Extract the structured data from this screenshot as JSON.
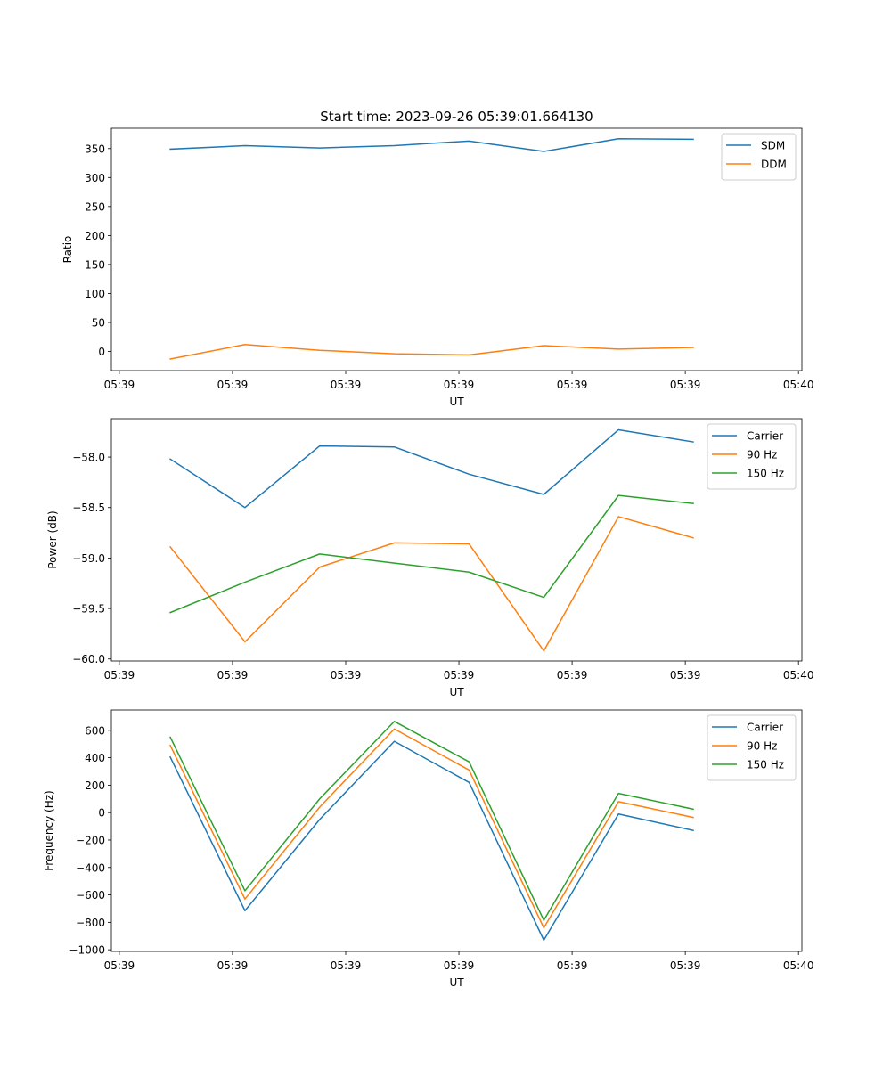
{
  "figure": {
    "title": "Start time: 2023-09-26 05:39:01.664130"
  },
  "chart_data": [
    {
      "type": "line",
      "xlabel": "UT",
      "ylabel": "Ratio",
      "x": [
        0.45,
        1.11,
        1.77,
        2.43,
        3.09,
        3.75,
        4.41,
        5.07
      ],
      "xlim": [
        -0.07,
        6.03
      ],
      "xticks": [
        0,
        1,
        2,
        3,
        4,
        5,
        6
      ],
      "xtick_labels": [
        "05:39",
        "05:39",
        "05:39",
        "05:39",
        "05:39",
        "05:39",
        "05:40"
      ],
      "ylim": [
        -33,
        385
      ],
      "yticks": [
        0,
        50,
        100,
        150,
        200,
        250,
        300,
        350
      ],
      "ytick_labels": [
        "0",
        "50",
        "100",
        "150",
        "200",
        "250",
        "300",
        "350"
      ],
      "legend": "top-right",
      "series": [
        {
          "name": "SDM",
          "color": "#1f77b4",
          "values": [
            349,
            355,
            351,
            355,
            363,
            345,
            367,
            366
          ]
        },
        {
          "name": "DDM",
          "color": "#ff7f0e",
          "values": [
            -13,
            12,
            2,
            -4,
            -6,
            10,
            4,
            7
          ]
        }
      ]
    },
    {
      "type": "line",
      "xlabel": "UT",
      "ylabel": "Power (dB)",
      "x": [
        0.45,
        1.11,
        1.77,
        2.43,
        3.09,
        3.75,
        4.41,
        5.07
      ],
      "xlim": [
        -0.07,
        6.03
      ],
      "xticks": [
        0,
        1,
        2,
        3,
        4,
        5,
        6
      ],
      "xtick_labels": [
        "05:39",
        "05:39",
        "05:39",
        "05:39",
        "05:39",
        "05:39",
        "05:40"
      ],
      "ylim": [
        -60.02,
        -57.62
      ],
      "yticks": [
        -60.0,
        -59.5,
        -59.0,
        -58.5,
        -58.0
      ],
      "ytick_labels": [
        "−60.0",
        "−59.5",
        "−59.0",
        "−58.5",
        "−58.0"
      ],
      "legend": "top-right",
      "series": [
        {
          "name": "Carrier",
          "color": "#1f77b4",
          "values": [
            -58.02,
            -58.5,
            -57.89,
            -57.9,
            -58.17,
            -58.37,
            -57.73,
            -57.85
          ]
        },
        {
          "name": "90 Hz",
          "color": "#ff7f0e",
          "values": [
            -58.89,
            -59.83,
            -59.09,
            -58.85,
            -58.86,
            -59.92,
            -58.59,
            -58.8
          ]
        },
        {
          "name": "150 Hz",
          "color": "#2ca02c",
          "values": [
            -59.54,
            -59.24,
            -58.96,
            -59.05,
            -59.14,
            -59.39,
            -58.38,
            -58.46
          ]
        }
      ]
    },
    {
      "type": "line",
      "xlabel": "UT",
      "ylabel": "Frequency (Hz)",
      "x": [
        0.45,
        1.11,
        1.77,
        2.43,
        3.09,
        3.75,
        4.41,
        5.07
      ],
      "xlim": [
        -0.07,
        6.03
      ],
      "xticks": [
        0,
        1,
        2,
        3,
        4,
        5,
        6
      ],
      "xtick_labels": [
        "05:39",
        "05:39",
        "05:39",
        "05:39",
        "05:39",
        "05:39",
        "05:40"
      ],
      "ylim": [
        -1012,
        748
      ],
      "yticks": [
        -1000,
        -800,
        -600,
        -400,
        -200,
        0,
        200,
        400,
        600
      ],
      "ytick_labels": [
        "−1000",
        "−800",
        "−600",
        "−400",
        "−200",
        "0",
        "200",
        "400",
        "600"
      ],
      "legend": "top-right",
      "series": [
        {
          "name": "Carrier",
          "color": "#1f77b4",
          "values": [
            405,
            -715,
            -50,
            520,
            220,
            -930,
            -10,
            -130
          ]
        },
        {
          "name": "90 Hz",
          "color": "#ff7f0e",
          "values": [
            490,
            -630,
            40,
            610,
            310,
            -840,
            80,
            -35
          ]
        },
        {
          "name": "150 Hz",
          "color": "#2ca02c",
          "values": [
            550,
            -570,
            100,
            665,
            370,
            -785,
            140,
            25
          ]
        }
      ]
    }
  ]
}
